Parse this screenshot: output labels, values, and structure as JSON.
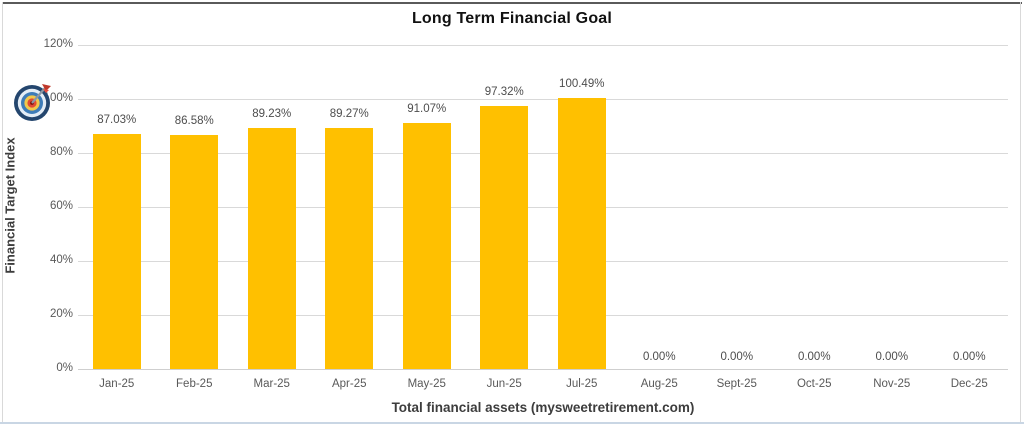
{
  "page": {
    "background_color": "#ffffff",
    "top_border_color": "#5a5a5a",
    "bottom_border_color": "#c9d6e4",
    "side_border_color": "#d9d9d9"
  },
  "chart_data": {
    "type": "bar",
    "title": "Long Term Financial Goal",
    "xlabel": "Total financial assets (mysweetretirement.com)",
    "ylabel": "Financial Target Index",
    "categories": [
      "Jan-25",
      "Feb-25",
      "Mar-25",
      "Apr-25",
      "May-25",
      "Jun-25",
      "Jul-25",
      "Aug-25",
      "Sept-25",
      "Oct-25",
      "Nov-25",
      "Dec-25"
    ],
    "values": [
      87.03,
      86.58,
      89.23,
      89.27,
      91.07,
      97.32,
      100.49,
      0,
      0,
      0,
      0,
      0
    ],
    "data_labels": [
      "87.03%",
      "86.58%",
      "89.23%",
      "89.27%",
      "91.07%",
      "97.32%",
      "100.49%",
      "0.00%",
      "0.00%",
      "0.00%",
      "0.00%",
      "0.00%"
    ],
    "y_ticks": [
      "120%",
      "100%",
      "80%",
      "60%",
      "40%",
      "20%",
      "0%"
    ],
    "y_tick_values": [
      120,
      100,
      80,
      60,
      40,
      20,
      0
    ],
    "ylim": [
      0,
      120
    ],
    "grid": true,
    "legend_position": "none",
    "bar_color": "#ffc000",
    "grid_color": "#d9d9d9",
    "tick_label_color": "#595959",
    "data_label_color": "#4d4d4d",
    "icons": [
      {
        "name": "dartboard-icon",
        "meaning": "100% target marker near the 100% gridline"
      }
    ]
  }
}
